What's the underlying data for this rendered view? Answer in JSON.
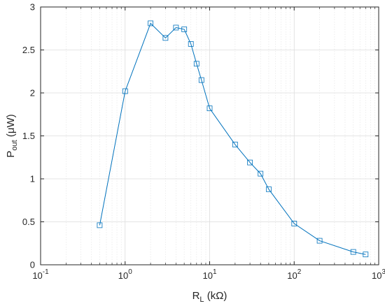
{
  "chart_data": {
    "type": "line",
    "x_scale": "log",
    "y_scale": "linear",
    "xlim": [
      0.1,
      1000
    ],
    "ylim": [
      0,
      3
    ],
    "grid": true,
    "x_ticks": [
      0.1,
      1,
      10,
      100,
      1000
    ],
    "x_tick_labels": [
      {
        "base": "10",
        "exp": "-1"
      },
      {
        "base": "10",
        "exp": "0"
      },
      {
        "base": "10",
        "exp": "1"
      },
      {
        "base": "10",
        "exp": "2"
      },
      {
        "base": "10",
        "exp": "3"
      }
    ],
    "y_ticks": [
      0,
      0.5,
      1,
      1.5,
      2,
      2.5,
      3
    ],
    "y_tick_labels": [
      "0",
      "0.5",
      "1",
      "1.5",
      "2",
      "2.5",
      "3"
    ],
    "xlabel": {
      "main": "R",
      "sub": "L",
      "rest": " (kΩ)"
    },
    "ylabel": {
      "main": "P",
      "sub": "out",
      "rest": " (μW)"
    },
    "series": [
      {
        "marker": "square",
        "color": "#0072BD",
        "x": [
          0.5,
          1,
          2,
          3,
          4,
          5,
          6,
          7,
          8,
          10,
          20,
          30,
          40,
          50,
          100,
          200,
          500,
          700
        ],
        "y": [
          0.46,
          2.02,
          2.81,
          2.64,
          2.76,
          2.74,
          2.57,
          2.34,
          2.15,
          1.82,
          1.4,
          1.19,
          1.06,
          0.88,
          0.48,
          0.28,
          0.15,
          0.12
        ]
      }
    ]
  }
}
